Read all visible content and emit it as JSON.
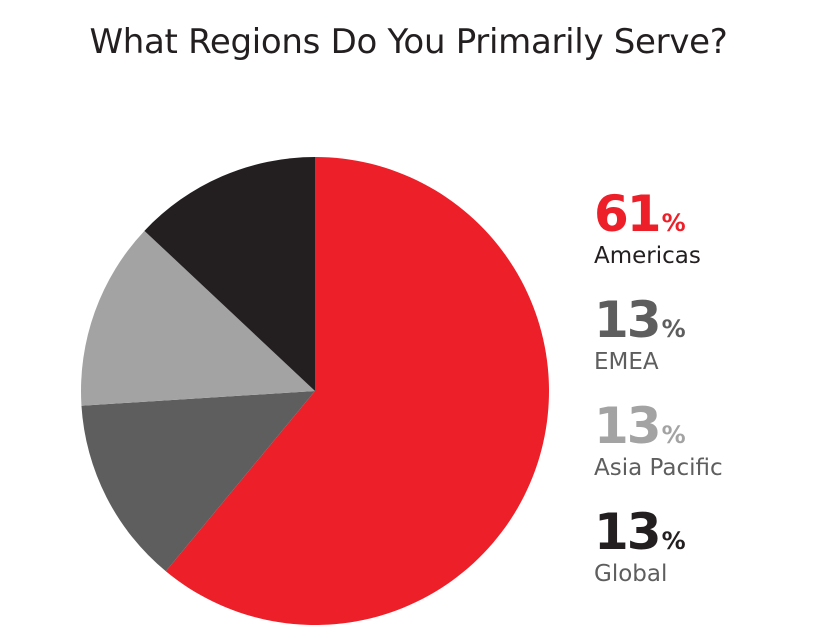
{
  "chart_data": {
    "type": "pie",
    "title": "What Regions Do You Primarily Serve?",
    "unit": "%",
    "slices": [
      {
        "label": "Americas",
        "value": 61,
        "color": "#ed1f28",
        "value_color": "#ed1f28",
        "label_color": "#231f20"
      },
      {
        "label": "EMEA",
        "value": 13,
        "color": "#5e5e5e",
        "value_color": "#5e5e5e",
        "label_color": "#5e5e5e"
      },
      {
        "label": "Asia Pacific",
        "value": 13,
        "color": "#a3a3a3",
        "value_color": "#a3a3a3",
        "label_color": "#5e5e5e"
      },
      {
        "label": "Global",
        "value": 13,
        "color": "#231f20",
        "value_color": "#231f20",
        "label_color": "#5e5e5e"
      }
    ]
  }
}
